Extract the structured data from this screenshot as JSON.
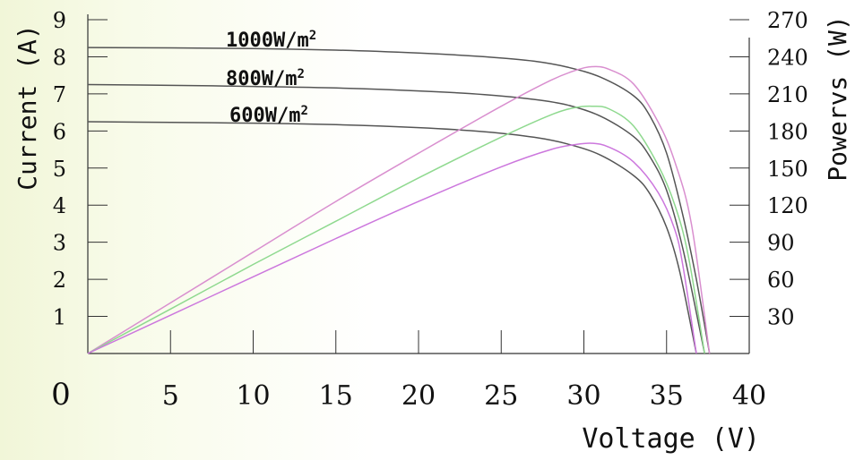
{
  "chart_data": {
    "type": "line",
    "title": "",
    "xlabel": "Voltage (V)",
    "ylabel": "Current (A)",
    "y2label": "Powervs (W)",
    "xlim": [
      0,
      40
    ],
    "ylim": [
      0,
      9
    ],
    "y2lim": [
      0,
      270
    ],
    "x_ticks": [
      0,
      5,
      10,
      15,
      20,
      25,
      30,
      35,
      40
    ],
    "y_ticks": [
      1,
      2,
      3,
      4,
      5,
      6,
      7,
      8,
      9
    ],
    "y2_ticks": [
      30,
      60,
      90,
      120,
      150,
      180,
      210,
      240,
      270
    ],
    "grid": false,
    "legend": "none",
    "irradiance_labels": [
      {
        "text": "1000W/m",
        "sup": "2"
      },
      {
        "text": "800W/m",
        "sup": "2"
      },
      {
        "text": "600W/m",
        "sup": "2"
      }
    ],
    "series": [
      {
        "axis": "current",
        "color": "#555555",
        "x": [
          0,
          5,
          10,
          15,
          20,
          24,
          27,
          29,
          31,
          33,
          34,
          35,
          36,
          36.8,
          37.6
        ],
        "y": [
          8.25,
          8.24,
          8.22,
          8.18,
          8.1,
          8.0,
          7.88,
          7.72,
          7.45,
          6.95,
          6.4,
          5.4,
          3.7,
          2.0,
          0
        ]
      },
      {
        "axis": "current",
        "color": "#555555",
        "x": [
          0,
          5,
          10,
          15,
          20,
          24,
          27,
          29,
          31,
          33,
          34,
          35,
          36,
          37.3
        ],
        "y": [
          7.25,
          7.23,
          7.2,
          7.16,
          7.08,
          6.98,
          6.85,
          6.7,
          6.4,
          5.85,
          5.3,
          4.4,
          2.8,
          0
        ]
      },
      {
        "axis": "current",
        "color": "#555555",
        "x": [
          0,
          5,
          10,
          15,
          20,
          24,
          27,
          29,
          31,
          33,
          34,
          35,
          35.8,
          36.8
        ],
        "y": [
          6.25,
          6.23,
          6.21,
          6.17,
          6.09,
          5.98,
          5.83,
          5.65,
          5.35,
          4.8,
          4.3,
          3.4,
          2.2,
          0
        ]
      },
      {
        "axis": "power",
        "color": "#d98fcf",
        "x": [
          0,
          5,
          10,
          15,
          20,
          25,
          28,
          29.5,
          30.5,
          31.5,
          33,
          34.5,
          35.5,
          36.5,
          37.6
        ],
        "y": [
          0,
          41,
          82,
          123,
          162,
          200,
          221,
          229,
          232,
          230,
          218,
          187,
          155,
          105,
          0
        ]
      },
      {
        "axis": "power",
        "color": "#8fd98f",
        "x": [
          0,
          5,
          10,
          15,
          20,
          25,
          28,
          29.5,
          30.5,
          31.5,
          33,
          34.5,
          35.5,
          36.3,
          37.3
        ],
        "y": [
          0,
          36,
          72,
          107,
          142,
          175,
          193,
          199,
          200,
          198,
          184,
          152,
          120,
          80,
          0
        ]
      },
      {
        "axis": "power",
        "color": "#cc77dd",
        "x": [
          0,
          5,
          10,
          15,
          20,
          25,
          28,
          29.5,
          30.5,
          31.5,
          33,
          34.5,
          35.5,
          36.0,
          36.8
        ],
        "y": [
          0,
          31,
          62,
          93,
          123,
          151,
          165,
          169,
          170,
          167,
          155,
          130,
          100,
          70,
          0
        ]
      }
    ]
  }
}
